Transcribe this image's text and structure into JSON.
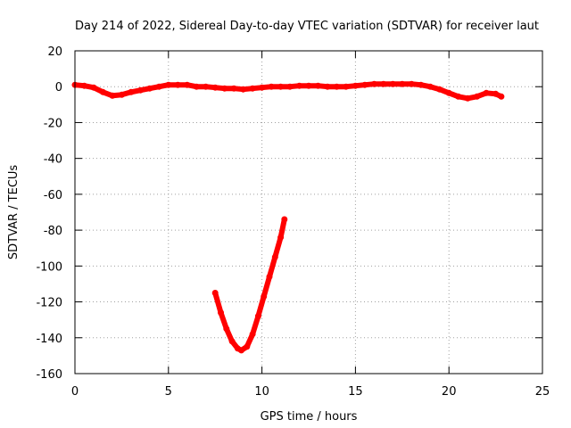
{
  "chart_data": {
    "type": "scatter",
    "title": "Day 214 of 2022, Sidereal Day-to-day VTEC variation (SDTVAR) for receiver laut",
    "xlabel": "GPS time / hours",
    "ylabel": "SDTVAR / TECUs",
    "xlim": [
      0,
      25
    ],
    "ylim": [
      -160,
      20
    ],
    "xticks": [
      "0",
      "5",
      "10",
      "15",
      "20",
      "25"
    ],
    "yticks": [
      "20",
      "0",
      "-20",
      "-40",
      "-60",
      "-80",
      "-100",
      "-120",
      "-140",
      "-160"
    ],
    "grid": true,
    "colors": {
      "series": "#ff0000"
    },
    "series": [
      {
        "x": [
          0,
          0.5,
          1,
          1.5,
          2,
          2.5,
          3,
          3.5,
          4,
          4.5,
          5,
          5.5,
          6,
          6.5,
          7,
          7.5,
          8,
          8.5,
          9,
          9.5,
          10,
          10.5,
          11,
          11.5,
          12,
          12.5,
          13,
          13.5,
          14,
          14.5,
          15,
          15.5,
          16,
          16.5,
          17,
          17.5,
          18,
          18.5,
          19,
          19.5,
          20,
          20.5,
          21,
          21.5,
          22,
          22.5,
          22.8
        ],
        "y": [
          1,
          0.5,
          -0.5,
          -3,
          -5,
          -4.5,
          -3,
          -2,
          -1,
          0,
          1,
          1,
          1,
          0,
          0,
          -0.5,
          -1,
          -1,
          -1.5,
          -1,
          -0.5,
          0,
          0,
          0,
          0.5,
          0.5,
          0.5,
          0,
          0,
          0,
          0.5,
          1,
          1.5,
          1.5,
          1.5,
          1.5,
          1.5,
          1,
          0,
          -1.5,
          -3.5,
          -5.5,
          -6.5,
          -5.5,
          -3.5,
          -4,
          -5.5
        ]
      },
      {
        "x": [
          7.5,
          7.8,
          8.1,
          8.4,
          8.7,
          8.9,
          9.2,
          9.5,
          9.8,
          10.1,
          10.4,
          10.7,
          11.0,
          11.2
        ],
        "y": [
          -115,
          -126,
          -135,
          -142,
          -146,
          -147,
          -145,
          -138,
          -128,
          -117,
          -106,
          -95,
          -84,
          -74
        ]
      }
    ]
  }
}
